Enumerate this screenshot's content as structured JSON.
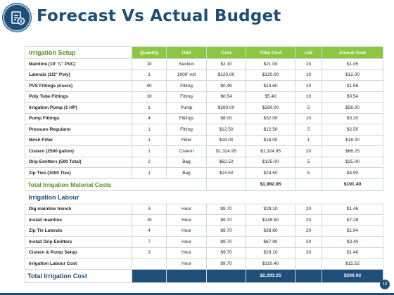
{
  "title": "Forecast Vs Actual Budget",
  "page_number": "10",
  "icons": {
    "logo": "budget-document-icon"
  },
  "colors": {
    "navy": "#1f4e79",
    "green": "#8dc63f",
    "green_text": "#5a8f29"
  },
  "setup": {
    "section_label": "Irrigation Setup",
    "columns": [
      "Quantity",
      "Unit",
      "Cost",
      "Total Cost",
      "Life",
      "Annual Cost"
    ],
    "rows": [
      {
        "item": "Mainline (10' ¾\" PVC)",
        "quantity": "10",
        "unit": "Section",
        "cost": "$2.10",
        "total": "$21.00",
        "life": "20",
        "annual": "$1.05"
      },
      {
        "item": "Laterals (1/2\" Poly)",
        "quantity": "1",
        "unit": "1000' roll",
        "cost": "$120.00",
        "total": "$120.00",
        "life": "10",
        "annual": "$12.00"
      },
      {
        "item": "PVS Fittings (risers)",
        "quantity": "40",
        "unit": "Fitting",
        "cost": "$0.49",
        "total": "$19.60",
        "life": "10",
        "annual": "$1.96"
      },
      {
        "item": "Poly Tube Fittings",
        "quantity": "10",
        "unit": "Fitting",
        "cost": "$0.54",
        "total": "$5.40",
        "life": "10",
        "annual": "$0.54"
      },
      {
        "item": "Irrigation Pump (1 HP)",
        "quantity": "1",
        "unit": "Pump",
        "cost": "$280.00",
        "total": "$280.00",
        "life": "5",
        "annual": "$56.00"
      },
      {
        "item": "Pump Fittings",
        "quantity": "4",
        "unit": "Fittings",
        "cost": "$8.00",
        "total": "$32.00",
        "life": "10",
        "annual": "$3.20"
      },
      {
        "item": "Pressure Regulator",
        "quantity": "1",
        "unit": "Fitting",
        "cost": "$12.50",
        "total": "$12.50",
        "life": "5",
        "annual": "$2.50"
      },
      {
        "item": "Mesh Filter",
        "quantity": "1",
        "unit": "Filter",
        "cost": "$18.00",
        "total": "$18.00",
        "life": "1",
        "annual": "$18.00"
      },
      {
        "item": "Cistern (2500 gallon)",
        "quantity": "1",
        "unit": "Cistern",
        "cost": "$1,324.95",
        "total": "$1,324.95",
        "life": "20",
        "annual": "$66.25"
      },
      {
        "item": "Drip Emitters (500 Total)",
        "quantity": "2",
        "unit": "Bag",
        "cost": "$62.50",
        "total": "$125.00",
        "life": "5",
        "annual": "$25.00"
      },
      {
        "item": "Zip Ties (1000 Ties)",
        "quantity": "1",
        "unit": "Bag",
        "cost": "$24.50",
        "total": "$24.50",
        "life": "5",
        "annual": "$4.90"
      }
    ],
    "subtotal": {
      "label": "Total Irrigation Material Costs",
      "total": "$1,982.95",
      "annual": "$191.40"
    }
  },
  "labour": {
    "section_label": "Irrigation Labour",
    "rows": [
      {
        "item": "Dig mainline trench",
        "quantity": "3",
        "unit": "Hour",
        "cost": "$9.70",
        "total": "$29.10",
        "life": "20",
        "annual": "$1.46"
      },
      {
        "item": "Install mainline",
        "quantity": "15",
        "unit": "Hour",
        "cost": "$9.70",
        "total": "$145.50",
        "life": "20",
        "annual": "$7.28"
      },
      {
        "item": "Zip Tie Laterals",
        "quantity": "4",
        "unit": "Hour",
        "cost": "$9.70",
        "total": "$38.80",
        "life": "20",
        "annual": "$1.94"
      },
      {
        "item": "Install Drip Emitters",
        "quantity": "7",
        "unit": "Hour",
        "cost": "$9.70",
        "total": "$67.90",
        "life": "20",
        "annual": "$3.40"
      },
      {
        "item": "Cistern & Pump Setup",
        "quantity": "3",
        "unit": "Hour",
        "cost": "$9.70",
        "total": "$29.10",
        "life": "20",
        "annual": "$1.46"
      },
      {
        "item": "Irrigation Labour Cost",
        "quantity": "",
        "unit": "Hour",
        "cost": "$9.70",
        "total": "$310.40",
        "life": "",
        "annual": "$15.52"
      }
    ]
  },
  "grand_total": {
    "label": "Total Irrigation Cost",
    "total": "$2,293.35",
    "annual": "$206.92"
  }
}
